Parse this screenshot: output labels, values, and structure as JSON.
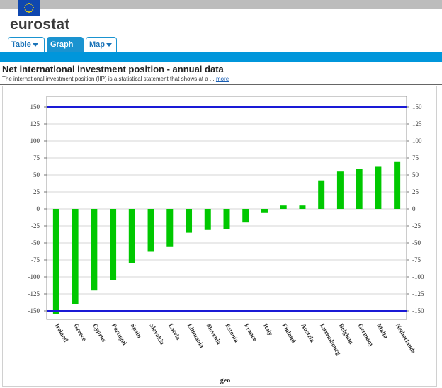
{
  "header": {
    "logo_text": "eurostat",
    "flag_icon": "eu-flag-icon"
  },
  "tabs": [
    {
      "label": "Table",
      "active": false
    },
    {
      "label": "Graph",
      "active": true
    },
    {
      "label": "Map",
      "active": false
    }
  ],
  "dataset": {
    "title": "Net international investment position - annual data",
    "description": "The international investment position (IIP) is a statistical statement that shows at a ...",
    "more_link": "more"
  },
  "colors": {
    "bar": "#00c800",
    "threshold": "#1a1ad6",
    "tab_blue": "#1a93d0",
    "bar_strip": "#0096db"
  },
  "chart_data": {
    "type": "bar",
    "categories": [
      "Ireland",
      "Greece",
      "Cyprus",
      "Portugal",
      "Spain",
      "Slovakia",
      "Latvia",
      "Lithuania",
      "Slovenia",
      "Estonia",
      "France",
      "Italy",
      "Finland",
      "Austria",
      "Luxembourg",
      "Belgium",
      "Germany",
      "Malta",
      "Netherlands"
    ],
    "values": [
      -155,
      -140,
      -120,
      -105,
      -80,
      -63,
      -56,
      -35,
      -31,
      -30,
      -20,
      -6,
      5,
      5,
      42,
      55,
      59,
      62,
      69
    ],
    "ylim": [
      -160,
      160
    ],
    "yticks": [
      "150",
      "125",
      "100",
      "75",
      "50",
      "25",
      "0",
      "-25",
      "-50",
      "-75",
      "-100",
      "-125",
      "-150"
    ],
    "ytick_values": [
      150,
      125,
      100,
      75,
      50,
      25,
      0,
      -25,
      -50,
      -75,
      -100,
      -125,
      -150
    ],
    "reference_lines": [
      150,
      -150
    ],
    "xlabel": "geo",
    "grid": true
  }
}
